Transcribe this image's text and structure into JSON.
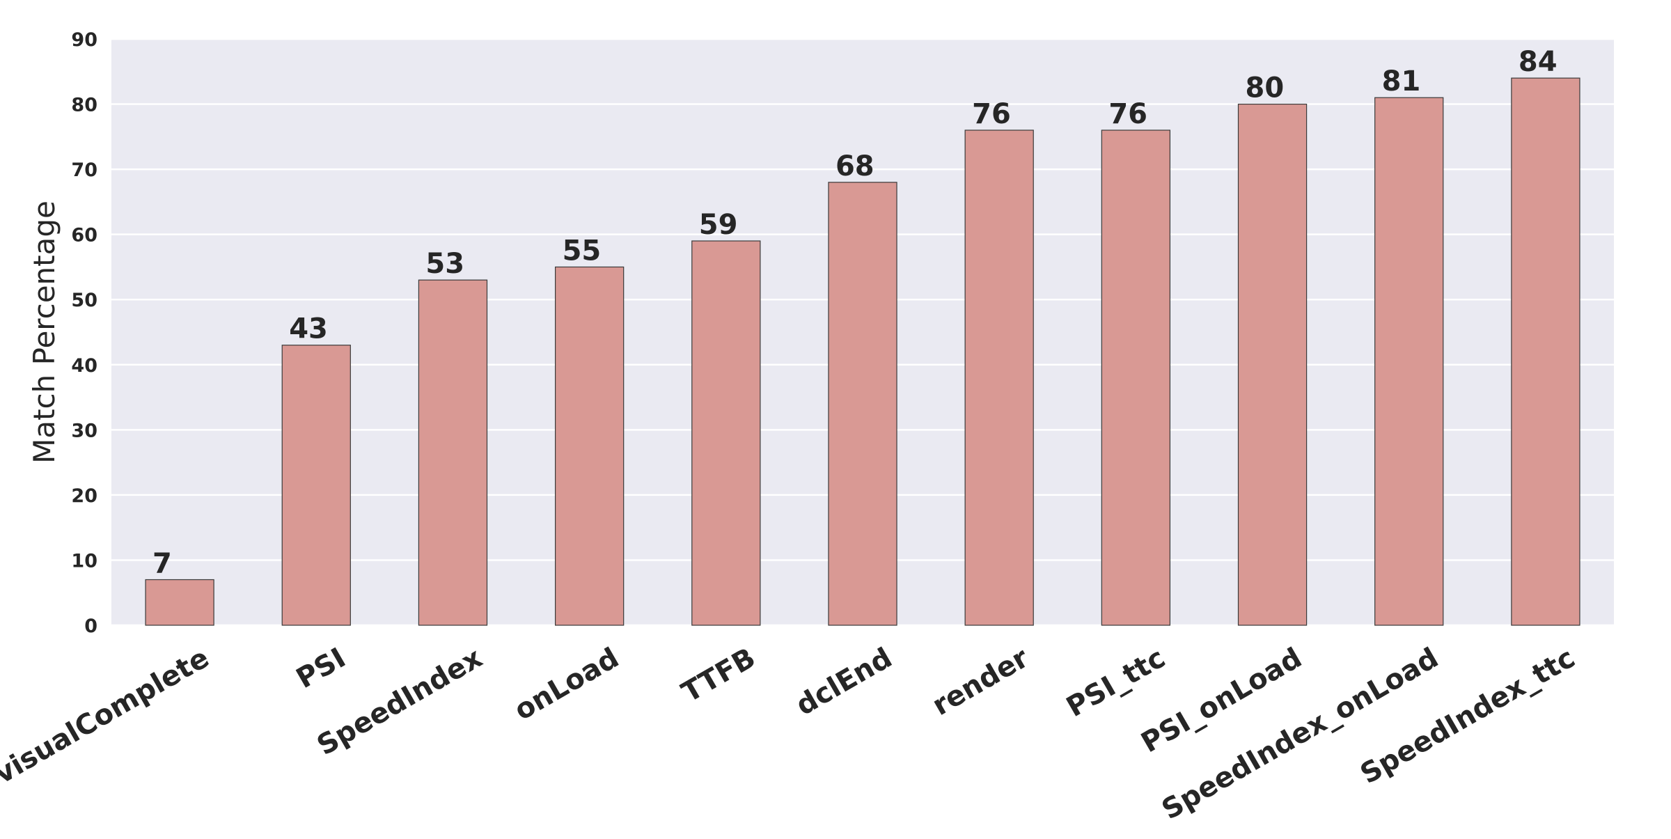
{
  "chart_data": {
    "type": "bar",
    "title": "",
    "xlabel": "",
    "ylabel": "Match Percentage",
    "ylim": [
      0,
      90
    ],
    "yticks": [
      0,
      10,
      20,
      30,
      40,
      50,
      60,
      70,
      80,
      90
    ],
    "grid": true,
    "categories": [
      "visualComplete",
      "PSI",
      "SpeedIndex",
      "onLoad",
      "TTFB",
      "dclEnd",
      "render",
      "PSI_ttc",
      "PSI_onLoad",
      "SpeedIndex_onLoad",
      "SpeedIndex_ttc"
    ],
    "values": [
      7,
      43,
      53,
      55,
      59,
      68,
      76,
      76,
      80,
      81,
      84
    ],
    "data_labels": [
      "7",
      "43",
      "53",
      "55",
      "59",
      "68",
      "76",
      "76",
      "80",
      "81",
      "84"
    ],
    "colors": {
      "bar": "#d99994",
      "bar_edge": "#3a3a3a",
      "plot_background": "#eaeaf2",
      "grid": "#ffffff",
      "text": "#262626"
    }
  }
}
